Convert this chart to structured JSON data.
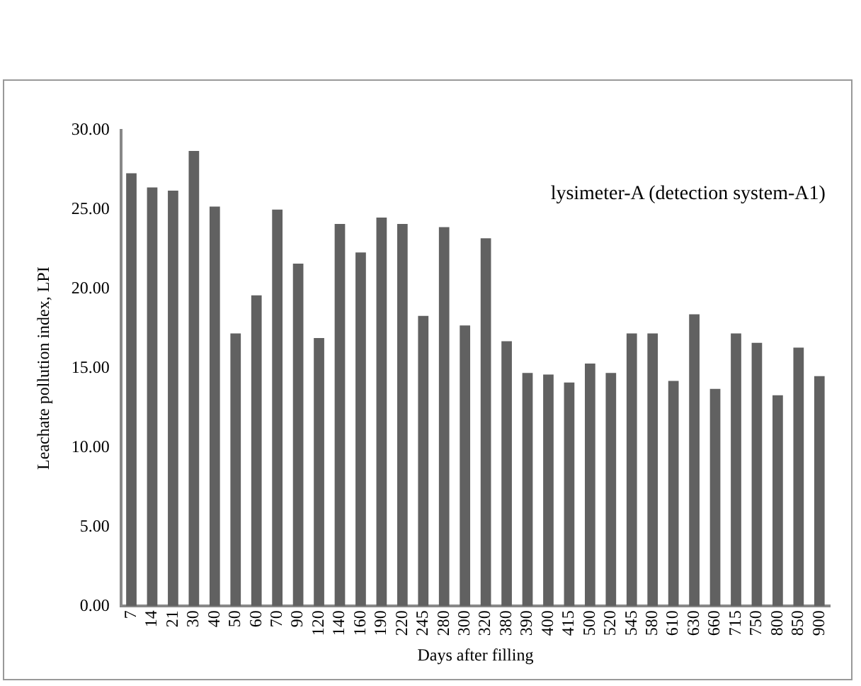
{
  "chart_data": {
    "type": "bar",
    "xlabel": "Days after filling",
    "ylabel": "Leachate pollution index, LPI",
    "annotations": [
      "lysimeter-A (detection system-A1)"
    ],
    "categories": [
      "7",
      "14",
      "21",
      "30",
      "40",
      "50",
      "60",
      "70",
      "90",
      "120",
      "140",
      "160",
      "190",
      "220",
      "245",
      "280",
      "300",
      "320",
      "380",
      "390",
      "400",
      "415",
      "500",
      "520",
      "545",
      "580",
      "610",
      "630",
      "660",
      "715",
      "750",
      "800",
      "850",
      "900"
    ],
    "values": [
      27.3,
      26.4,
      26.2,
      28.7,
      25.2,
      17.2,
      19.6,
      25.0,
      21.6,
      16.9,
      24.1,
      22.3,
      24.5,
      24.1,
      18.3,
      23.9,
      17.7,
      23.2,
      16.7,
      14.7,
      14.6,
      14.1,
      15.3,
      14.7,
      17.2,
      17.2,
      14.2,
      18.4,
      13.7,
      17.2,
      16.6,
      13.3,
      16.3,
      14.5
    ],
    "color": "#616161",
    "ylim": [
      0,
      30
    ],
    "yticks": [
      {
        "value": 0,
        "label": "0.00"
      },
      {
        "value": 5,
        "label": "5.00"
      },
      {
        "value": 10,
        "label": "10.00"
      },
      {
        "value": 15,
        "label": "15.00"
      },
      {
        "value": 20,
        "label": "20.00"
      },
      {
        "value": 25,
        "label": "25.00"
      },
      {
        "value": 30,
        "label": "30.00"
      }
    ],
    "grid": false,
    "legend": false
  }
}
